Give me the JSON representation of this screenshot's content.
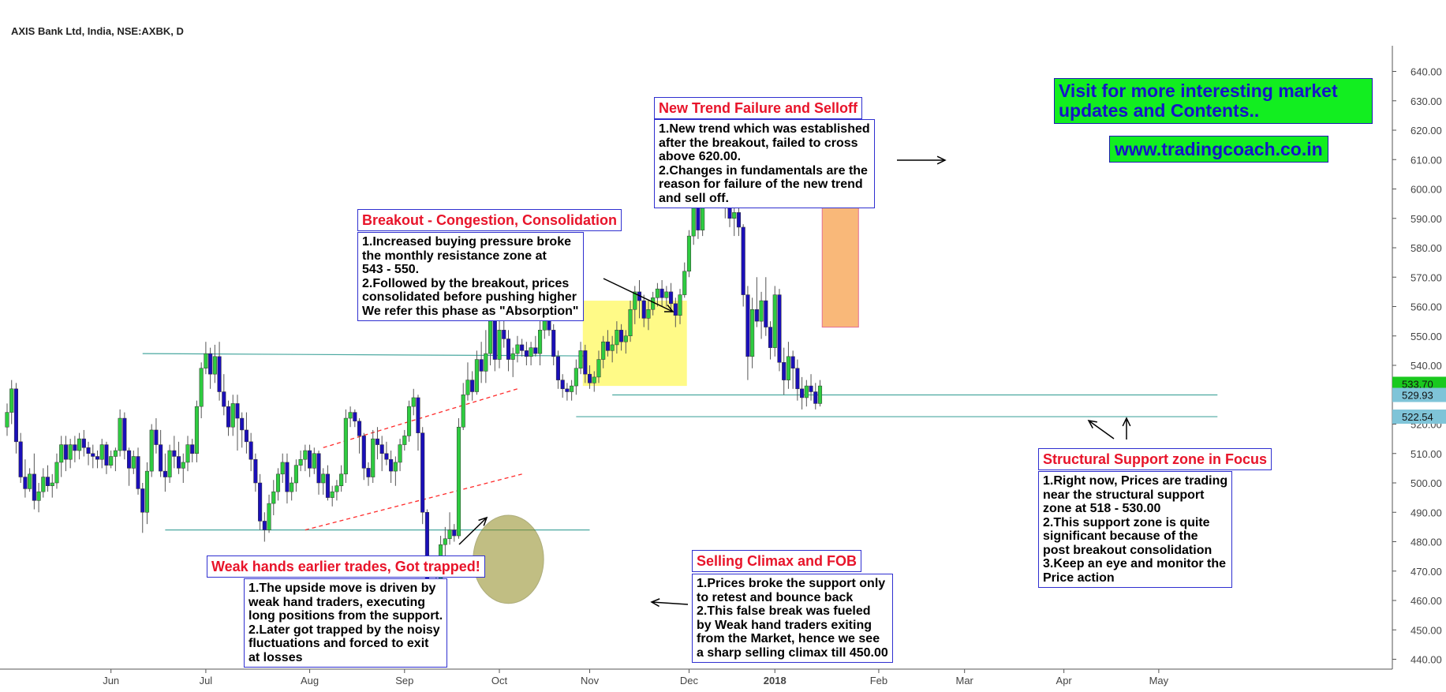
{
  "header": {
    "title": "AXIS Bank Ltd, India, NSE:AXBK, D"
  },
  "chart_data": {
    "type": "candlestick",
    "symbol": "NSE:AXBK",
    "interval": "D",
    "ylim": [
      437,
      645
    ],
    "y_ticks": [
      "440.00",
      "450.00",
      "460.00",
      "470.00",
      "480.00",
      "490.00",
      "500.00",
      "510.00",
      "520.00",
      "530.00",
      "540.00",
      "550.00",
      "560.00",
      "570.00",
      "580.00",
      "590.00",
      "600.00",
      "610.00",
      "620.00",
      "630.00",
      "640.00"
    ],
    "x_ticks": [
      {
        "label": "Jun",
        "bar": 23
      },
      {
        "label": "Jul",
        "bar": 44
      },
      {
        "label": "Aug",
        "bar": 67
      },
      {
        "label": "Sep",
        "bar": 88
      },
      {
        "label": "Oct",
        "bar": 109
      },
      {
        "label": "Nov",
        "bar": 129
      },
      {
        "label": "Dec",
        "bar": 151
      },
      {
        "label": "2018",
        "bar": 170
      },
      {
        "label": "Feb",
        "bar": 193
      },
      {
        "label": "Mar",
        "bar": 212
      },
      {
        "label": "Apr",
        "bar": 234
      },
      {
        "label": "May",
        "bar": 255
      }
    ],
    "price_labels": [
      {
        "value": 533.7,
        "text": "533.70",
        "color": "#19c91e"
      },
      {
        "value": 529.93,
        "text": "529.93",
        "color": "#7fc4d8"
      },
      {
        "value": 522.54,
        "text": "522.54",
        "color": "#7fc4d8"
      }
    ],
    "colors": {
      "up": "#2ecc40",
      "down": "#1a0fb8",
      "wick": "#555555",
      "support": "#4aa8a0",
      "channel": "#ff2a2a"
    },
    "candles": [
      [
        519,
        527,
        516,
        524
      ],
      [
        524,
        535,
        520,
        532
      ],
      [
        532,
        534,
        510,
        514
      ],
      [
        514,
        517,
        500,
        502
      ],
      [
        502,
        508,
        495,
        498
      ],
      [
        498,
        505,
        497,
        503
      ],
      [
        503,
        510,
        491,
        494
      ],
      [
        494,
        500,
        490,
        497
      ],
      [
        497,
        505,
        495,
        502
      ],
      [
        502,
        506,
        497,
        499
      ],
      [
        499,
        503,
        495,
        500
      ],
      [
        500,
        510,
        498,
        507
      ],
      [
        507,
        516,
        502,
        513
      ],
      [
        513,
        516,
        504,
        508
      ],
      [
        508,
        515,
        505,
        513
      ],
      [
        513,
        516,
        507,
        511
      ],
      [
        511,
        517,
        508,
        515
      ],
      [
        515,
        518,
        509,
        512
      ],
      [
        512,
        514,
        506,
        510
      ],
      [
        510,
        513,
        505,
        509
      ],
      [
        509,
        511,
        505,
        508
      ],
      [
        508,
        515,
        505,
        513
      ],
      [
        513,
        514,
        503,
        506
      ],
      [
        506,
        511,
        505,
        509
      ],
      [
        509,
        512,
        504,
        511
      ],
      [
        511,
        525,
        509,
        522
      ],
      [
        522,
        524,
        508,
        511
      ],
      [
        511,
        512,
        499,
        505
      ],
      [
        505,
        511,
        503,
        509
      ],
      [
        509,
        512,
        496,
        498
      ],
      [
        498,
        500,
        483,
        490
      ],
      [
        490,
        507,
        486,
        504
      ],
      [
        504,
        520,
        502,
        518
      ],
      [
        518,
        522,
        510,
        513
      ],
      [
        513,
        518,
        502,
        504
      ],
      [
        504,
        510,
        497,
        502
      ],
      [
        502,
        513,
        500,
        511
      ],
      [
        511,
        516,
        505,
        509
      ],
      [
        509,
        514,
        503,
        505
      ],
      [
        505,
        510,
        500,
        507
      ],
      [
        507,
        516,
        504,
        513
      ],
      [
        513,
        515,
        507,
        510
      ],
      [
        510,
        528,
        507,
        526
      ],
      [
        526,
        541,
        522,
        539
      ],
      [
        539,
        548,
        537,
        544
      ],
      [
        544,
        546,
        532,
        537
      ],
      [
        537,
        547,
        534,
        543
      ],
      [
        543,
        548,
        528,
        531
      ],
      [
        531,
        537,
        523,
        526
      ],
      [
        526,
        528,
        516,
        519
      ],
      [
        519,
        530,
        516,
        527
      ],
      [
        527,
        530,
        511,
        522
      ],
      [
        522,
        524,
        512,
        518
      ],
      [
        518,
        524,
        510,
        514
      ],
      [
        514,
        517,
        504,
        508
      ],
      [
        508,
        510,
        497,
        500
      ],
      [
        500,
        503,
        484,
        487
      ],
      [
        487,
        490,
        480,
        484
      ],
      [
        484,
        496,
        483,
        493
      ],
      [
        493,
        501,
        489,
        497
      ],
      [
        497,
        505,
        494,
        503
      ],
      [
        503,
        510,
        500,
        507
      ],
      [
        507,
        510,
        493,
        497
      ],
      [
        497,
        502,
        494,
        500
      ],
      [
        500,
        508,
        497,
        506
      ],
      [
        506,
        511,
        504,
        508
      ],
      [
        508,
        513,
        504,
        511
      ],
      [
        511,
        513,
        502,
        505
      ],
      [
        505,
        512,
        503,
        510
      ],
      [
        510,
        511,
        496,
        500
      ],
      [
        500,
        505,
        496,
        503
      ],
      [
        503,
        506,
        494,
        495
      ],
      [
        495,
        499,
        492,
        497
      ],
      [
        497,
        501,
        494,
        499
      ],
      [
        499,
        506,
        497,
        503
      ],
      [
        503,
        525,
        500,
        522
      ],
      [
        522,
        526,
        519,
        524
      ],
      [
        524,
        525,
        519,
        521
      ],
      [
        521,
        522,
        510,
        516
      ],
      [
        516,
        517,
        501,
        505
      ],
      [
        505,
        507,
        499,
        502
      ],
      [
        502,
        518,
        500,
        515
      ],
      [
        515,
        519,
        508,
        513
      ],
      [
        513,
        516,
        504,
        510
      ],
      [
        510,
        514,
        506,
        508
      ],
      [
        508,
        511,
        500,
        504
      ],
      [
        504,
        509,
        499,
        507
      ],
      [
        507,
        515,
        504,
        513
      ],
      [
        513,
        518,
        511,
        516
      ],
      [
        516,
        528,
        514,
        526
      ],
      [
        526,
        532,
        523,
        529
      ],
      [
        529,
        530,
        511,
        517
      ],
      [
        517,
        519,
        486,
        490
      ],
      [
        490,
        491,
        460,
        462
      ],
      [
        462,
        464,
        448,
        451
      ],
      [
        451,
        468,
        448,
        465
      ],
      [
        465,
        482,
        462,
        479
      ],
      [
        479,
        485,
        475,
        481
      ],
      [
        481,
        490,
        479,
        484
      ],
      [
        484,
        486,
        480,
        482
      ],
      [
        482,
        522,
        481,
        519
      ],
      [
        519,
        534,
        518,
        530
      ],
      [
        530,
        541,
        528,
        535
      ],
      [
        535,
        538,
        528,
        531
      ],
      [
        531,
        545,
        530,
        542
      ],
      [
        542,
        548,
        534,
        538
      ],
      [
        538,
        552,
        534,
        544
      ],
      [
        544,
        560,
        540,
        556
      ],
      [
        556,
        558,
        538,
        542
      ],
      [
        542,
        556,
        539,
        552
      ],
      [
        552,
        561,
        546,
        549
      ],
      [
        549,
        552,
        538,
        542
      ],
      [
        542,
        546,
        536,
        544
      ],
      [
        544,
        550,
        541,
        547
      ],
      [
        547,
        549,
        543,
        545
      ],
      [
        545,
        548,
        540,
        543
      ],
      [
        543,
        548,
        540,
        546
      ],
      [
        546,
        550,
        543,
        544
      ],
      [
        544,
        555,
        540,
        552
      ],
      [
        552,
        566,
        549,
        563
      ],
      [
        563,
        565,
        550,
        552
      ],
      [
        552,
        554,
        540,
        543
      ],
      [
        543,
        545,
        532,
        535
      ],
      [
        535,
        537,
        529,
        532
      ],
      [
        532,
        534,
        528,
        531
      ],
      [
        531,
        535,
        528,
        533
      ],
      [
        533,
        542,
        530,
        539
      ],
      [
        539,
        548,
        537,
        545
      ],
      [
        545,
        547,
        534,
        537
      ],
      [
        537,
        540,
        532,
        534
      ],
      [
        534,
        538,
        531,
        536
      ],
      [
        536,
        545,
        534,
        542
      ],
      [
        542,
        550,
        539,
        548
      ],
      [
        548,
        552,
        543,
        545
      ],
      [
        545,
        550,
        541,
        547
      ],
      [
        547,
        555,
        544,
        552
      ],
      [
        552,
        554,
        545,
        548
      ],
      [
        548,
        552,
        544,
        550
      ],
      [
        550,
        562,
        548,
        559
      ],
      [
        559,
        567,
        554,
        565
      ],
      [
        565,
        569,
        556,
        562
      ],
      [
        562,
        564,
        553,
        556
      ],
      [
        556,
        562,
        552,
        559
      ],
      [
        559,
        565,
        557,
        563
      ],
      [
        563,
        568,
        560,
        566
      ],
      [
        566,
        569,
        560,
        563
      ],
      [
        563,
        567,
        560,
        565
      ],
      [
        565,
        568,
        558,
        561
      ],
      [
        561,
        563,
        553,
        557
      ],
      [
        557,
        566,
        554,
        564
      ],
      [
        564,
        575,
        563,
        572
      ],
      [
        572,
        586,
        570,
        584
      ],
      [
        584,
        597,
        581,
        594
      ],
      [
        594,
        599,
        583,
        586
      ],
      [
        586,
        612,
        584,
        609
      ],
      [
        609,
        628,
        605,
        620
      ],
      [
        620,
        625,
        612,
        617
      ],
      [
        617,
        620,
        605,
        608
      ],
      [
        608,
        614,
        598,
        611
      ],
      [
        611,
        615,
        590,
        595
      ],
      [
        595,
        598,
        587,
        590
      ],
      [
        590,
        594,
        584,
        592
      ],
      [
        592,
        600,
        584,
        587
      ],
      [
        587,
        588,
        560,
        564
      ],
      [
        564,
        567,
        535,
        543
      ],
      [
        543,
        563,
        539,
        559
      ],
      [
        559,
        570,
        553,
        555
      ],
      [
        555,
        565,
        549,
        562
      ],
      [
        562,
        570,
        550,
        553
      ],
      [
        553,
        555,
        542,
        546
      ],
      [
        546,
        567,
        543,
        564
      ],
      [
        564,
        566,
        538,
        541
      ],
      [
        541,
        546,
        530,
        535
      ],
      [
        535,
        548,
        532,
        543
      ],
      [
        543,
        545,
        532,
        539
      ],
      [
        539,
        542,
        528,
        532
      ],
      [
        532,
        536,
        525,
        529
      ],
      [
        529,
        535,
        526,
        533
      ],
      [
        533,
        537,
        528,
        531
      ],
      [
        531,
        534,
        525,
        527
      ],
      [
        527,
        535,
        526,
        533
      ]
    ],
    "bar_step": 5.725,
    "bar0_x": 9,
    "support_lines": [
      {
        "from_bar": 30,
        "to_bar": 128,
        "y0": 544,
        "y1": 543.2
      },
      {
        "from_bar": 35,
        "to_bar": 129,
        "y0": 484,
        "y1": 484
      },
      {
        "from_bar": 134,
        "to_bar": 268,
        "y0": 529.93,
        "y1": 529.93
      },
      {
        "from_bar": 126,
        "to_bar": 268,
        "y0": 522.54,
        "y1": 522.54
      }
    ],
    "channel_lines": [
      {
        "from_bar": 70,
        "to_bar": 113,
        "y0": 512,
        "y1": 532
      },
      {
        "from_bar": 66,
        "to_bar": 114,
        "y0": 484,
        "y1": 503
      }
    ],
    "zones": [
      {
        "from_bar": 128,
        "to_bar": 150,
        "top": 562,
        "bottom": 533,
        "color": "#fff97a"
      },
      {
        "from_bar": 181,
        "to_bar": 188,
        "top": 622,
        "bottom": 553,
        "color": "#f9b16b"
      }
    ],
    "climax_circle": {
      "bar": 111,
      "price": 474,
      "rx_bars": 7.8,
      "ry_price": 15
    },
    "annotations": {
      "breakout": {
        "title": "Breakout - Congestion, Consolidation",
        "lines": [
          "1.Increased buying pressure broke",
          "the monthly resistance zone at",
          "543 - 550.",
          "2.Followed by the breakout, prices",
          "consolidated before pushing higher",
          "We refer this phase as \"Absorption\""
        ]
      },
      "failure": {
        "title": "New Trend Failure and Selloff",
        "lines": [
          "1.New trend which was established",
          "after the breakout, failed to cross",
          "above 620.00.",
          "2.Changes in fundamentals are the",
          "reason for failure of the new trend",
          "and sell off."
        ]
      },
      "weak": {
        "title": "Weak hands earlier trades, Got trapped!",
        "lines": [
          "1.The upside move is driven by",
          "weak hand traders, executing",
          "long positions from the support.",
          "2.Later got trapped by the noisy",
          "fluctuations and forced to exit",
          "at losses"
        ]
      },
      "climax": {
        "title": "Selling Climax and FOB",
        "lines": [
          "1.Prices broke the support only",
          "to retest and bounce back",
          "2.This false break was fueled",
          "by Weak hand traders exiting",
          "from the Market, hence we see",
          "a sharp selling climax till 450.00"
        ]
      },
      "support": {
        "title": "Structural Support zone in Focus",
        "lines": [
          "1.Right now, Prices are trading",
          "near the structural support",
          "zone at 518 - 530.00",
          "2.This support zone is quite",
          "significant because of the",
          "post breakout consolidation",
          "3.Keep an eye and monitor the",
          "Price action"
        ]
      }
    }
  },
  "promo": {
    "line1": "Visit for more interesting market",
    "line2": "updates and Contents..",
    "url": "www.tradingcoach.co.in"
  }
}
